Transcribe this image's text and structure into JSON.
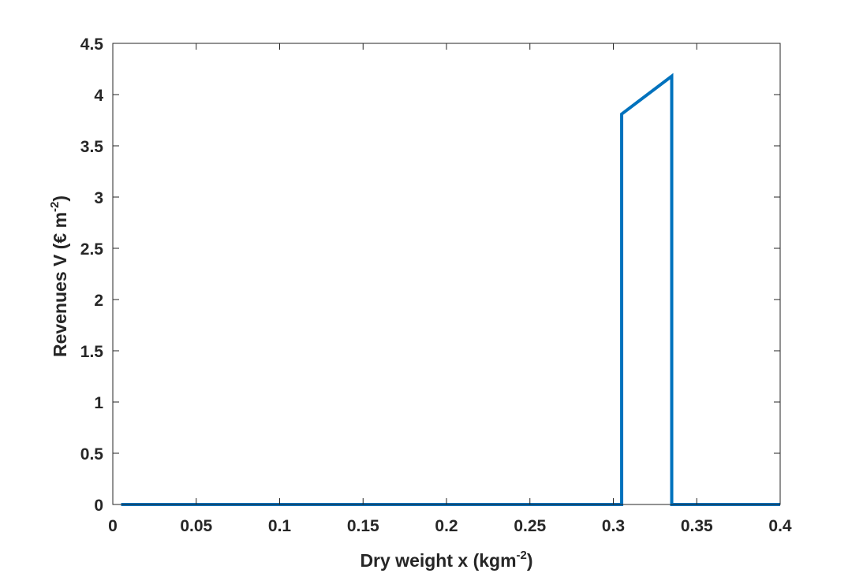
{
  "chart_data": {
    "type": "line",
    "title": "",
    "xlabel": {
      "main": "Dry weight x (kgm",
      "sup": "-2",
      "end": ")"
    },
    "ylabel": {
      "main": "Revenues V (€ m",
      "sup": "-2",
      "end": ")"
    },
    "xlim": [
      0,
      0.4
    ],
    "ylim": [
      0,
      4.5
    ],
    "xticks": [
      0,
      0.05,
      0.1,
      0.15,
      0.2,
      0.25,
      0.3,
      0.35,
      0.4
    ],
    "xtick_labels": [
      "0",
      "0.05",
      "0.1",
      "0.15",
      "0.2",
      "0.25",
      "0.3",
      "0.35",
      "0.4"
    ],
    "yticks": [
      0,
      0.5,
      1,
      1.5,
      2,
      2.5,
      3,
      3.5,
      4,
      4.5
    ],
    "ytick_labels": [
      "0",
      "0.5",
      "1",
      "1.5",
      "2",
      "2.5",
      "3",
      "3.5",
      "4",
      "4.5"
    ],
    "grid": false,
    "box": true,
    "series": [
      {
        "color": "#0072BD",
        "x": [
          0.005,
          0.305,
          0.305,
          0.335,
          0.335,
          0.4
        ],
        "y": [
          0,
          0,
          3.81,
          4.18,
          0,
          0
        ]
      }
    ]
  }
}
